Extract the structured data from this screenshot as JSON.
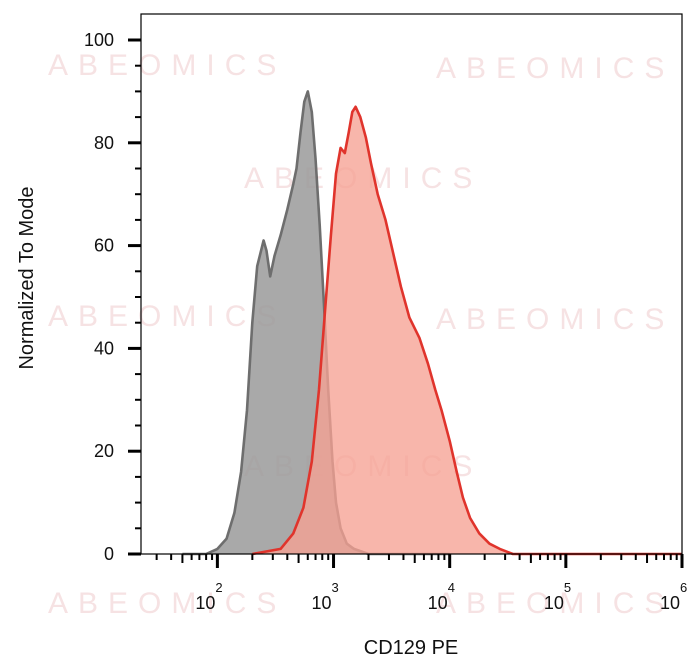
{
  "watermark": "ABEOMICS",
  "chart_data": {
    "type": "area",
    "xlabel": "CD129 PE",
    "ylabel": "Normalized To Mode",
    "x_scale": "log",
    "xlim": [
      22,
      1000000
    ],
    "ylim": [
      0,
      100
    ],
    "y_ticks": [
      {
        "value": 0,
        "label": "0"
      },
      {
        "value": 20,
        "label": "20"
      },
      {
        "value": 40,
        "label": "40"
      },
      {
        "value": 60,
        "label": "60"
      },
      {
        "value": 80,
        "label": "80"
      },
      {
        "value": 100,
        "label": "100"
      }
    ],
    "x_ticks": [
      {
        "value": 100,
        "base": "10",
        "exp": "2"
      },
      {
        "value": 1000,
        "base": "10",
        "exp": "3"
      },
      {
        "value": 10000,
        "base": "10",
        "exp": "4"
      },
      {
        "value": 100000,
        "base": "10",
        "exp": "5"
      },
      {
        "value": 1000000,
        "base": "10",
        "exp": "6"
      }
    ],
    "grid": false,
    "legend": "none",
    "series": [
      {
        "color": "#6e6e6e",
        "fill": "#9a9a9a",
        "points": [
          [
            50,
            0
          ],
          [
            80,
            0
          ],
          [
            100,
            1
          ],
          [
            120,
            3
          ],
          [
            140,
            8
          ],
          [
            160,
            16
          ],
          [
            180,
            28
          ],
          [
            200,
            45
          ],
          [
            220,
            56
          ],
          [
            250,
            61
          ],
          [
            265,
            59
          ],
          [
            285,
            54
          ],
          [
            310,
            58
          ],
          [
            350,
            62
          ],
          [
            400,
            67
          ],
          [
            450,
            72
          ],
          [
            480,
            75
          ],
          [
            520,
            82
          ],
          [
            560,
            88
          ],
          [
            600,
            90
          ],
          [
            650,
            86
          ],
          [
            700,
            77
          ],
          [
            760,
            64
          ],
          [
            830,
            48
          ],
          [
            900,
            32
          ],
          [
            980,
            18
          ],
          [
            1050,
            10
          ],
          [
            1150,
            5
          ],
          [
            1300,
            2
          ],
          [
            1500,
            1
          ],
          [
            2000,
            0
          ],
          [
            10000,
            0
          ]
        ]
      },
      {
        "color": "#e0342c",
        "fill": "#f6a294",
        "points": [
          [
            200,
            0
          ],
          [
            350,
            1
          ],
          [
            450,
            4
          ],
          [
            550,
            9
          ],
          [
            650,
            18
          ],
          [
            750,
            32
          ],
          [
            850,
            48
          ],
          [
            950,
            62
          ],
          [
            1050,
            74
          ],
          [
            1150,
            79
          ],
          [
            1250,
            78
          ],
          [
            1350,
            82
          ],
          [
            1450,
            86
          ],
          [
            1550,
            87
          ],
          [
            1700,
            85
          ],
          [
            1900,
            81
          ],
          [
            2100,
            76
          ],
          [
            2400,
            70
          ],
          [
            2800,
            65
          ],
          [
            3300,
            58
          ],
          [
            3800,
            52
          ],
          [
            4500,
            46
          ],
          [
            5500,
            42
          ],
          [
            6500,
            37
          ],
          [
            7500,
            32
          ],
          [
            8500,
            28
          ],
          [
            10000,
            22
          ],
          [
            11500,
            16
          ],
          [
            13000,
            11
          ],
          [
            15000,
            7
          ],
          [
            18000,
            4
          ],
          [
            22000,
            2
          ],
          [
            27000,
            1
          ],
          [
            35000,
            0
          ],
          [
            1000000,
            0
          ]
        ]
      }
    ]
  }
}
